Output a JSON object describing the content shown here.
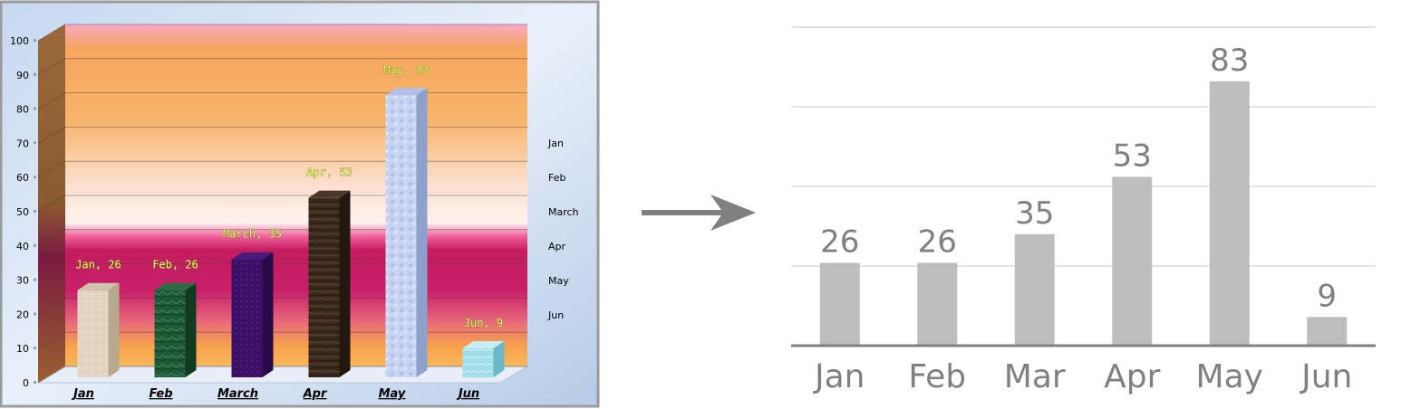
{
  "chart_data": [
    {
      "type": "bar",
      "style": "3d textured columns",
      "categories": [
        "Jan",
        "Feb",
        "March",
        "Apr",
        "May",
        "Jun"
      ],
      "values": [
        26,
        26,
        35,
        53,
        83,
        9
      ],
      "annotations": [
        "Jan, 26",
        "Feb, 26",
        "March, 35",
        "Apr, 53",
        "May, 83",
        "Jun, 9"
      ],
      "ylim": [
        0,
        100
      ],
      "yticks": [
        0,
        10,
        20,
        30,
        40,
        50,
        60,
        70,
        80,
        90,
        100
      ],
      "legend": [
        "Jan",
        "Feb",
        "March",
        "Apr",
        "May",
        "Jun"
      ],
      "legend_placement": "right",
      "grid": true
    },
    {
      "type": "bar",
      "categories": [
        "Jan",
        "Feb",
        "Mar",
        "Apr",
        "May",
        "Jun"
      ],
      "values": [
        26,
        26,
        35,
        53,
        83,
        9
      ],
      "data_labels": [
        "26",
        "26",
        "35",
        "53",
        "83",
        "9"
      ],
      "ylim": [
        0,
        100
      ],
      "grid": true,
      "bar_color": "#bdbdbe",
      "text_color": "#808080"
    }
  ],
  "arrow": {
    "symbol": "right-arrow-icon",
    "color": "#808080"
  }
}
